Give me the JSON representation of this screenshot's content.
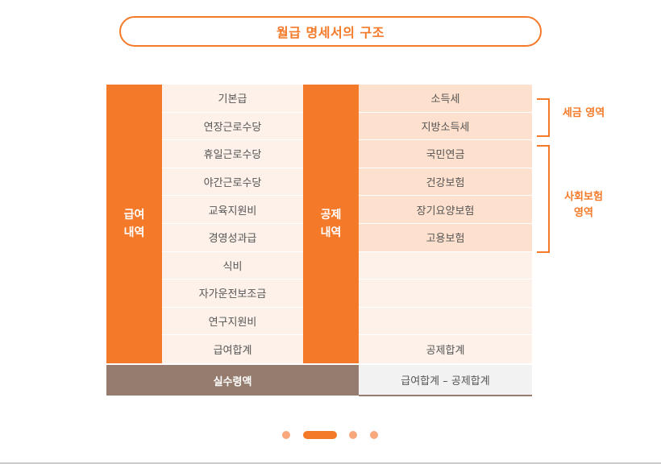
{
  "title": "월급 명세서의 구조",
  "pay": {
    "header_line1": "급여",
    "header_line2": "내역",
    "items": [
      "기본급",
      "연장근로수당",
      "휴일근로수당",
      "야간근로수당",
      "교육지원비",
      "경영성과급",
      "식비",
      "자가운전보조금",
      "연구지원비",
      "급여합계"
    ]
  },
  "deduction": {
    "header_line1": "공제",
    "header_line2": "내역",
    "items": [
      "소득세",
      "지방소득세",
      "국민연금",
      "건강보험",
      "장기요양보험",
      "고용보험",
      "",
      "",
      "",
      "공제합계"
    ]
  },
  "net": {
    "label": "실수령액",
    "formula": "급여합계 – 공제합계"
  },
  "brackets": {
    "tax_label": "세금 영역",
    "insurance_label_line1": "사회보험",
    "insurance_label_line2": "영역"
  },
  "pager": {
    "count": 4,
    "active_index": 1
  },
  "colors": {
    "accent": "#f47a2a",
    "net_bg": "#957c6e",
    "cell_light": "#fdf1e9",
    "cell_mid": "#fde0cd"
  }
}
